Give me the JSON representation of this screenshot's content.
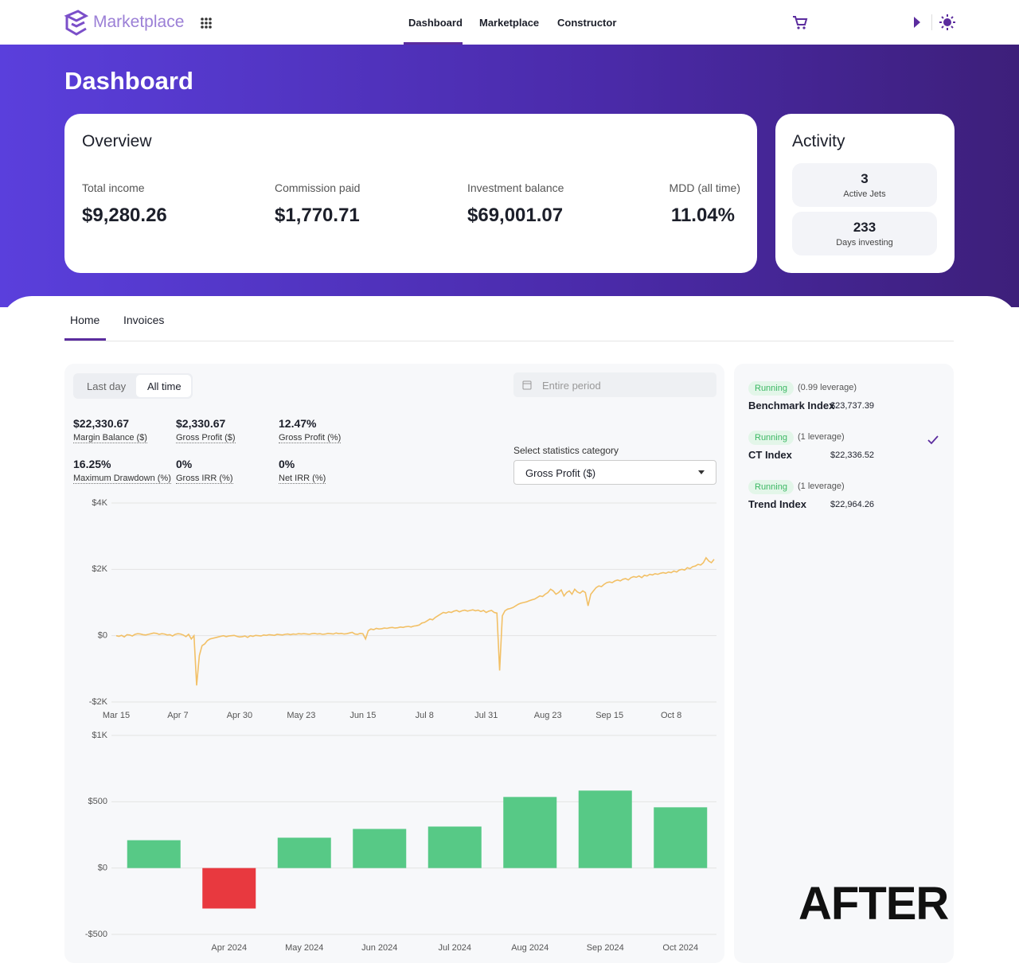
{
  "nav": {
    "brand": "Marketplace",
    "links": [
      "Dashboard",
      "Marketplace",
      "Constructor"
    ]
  },
  "page_title": "Dashboard",
  "overview": {
    "title": "Overview",
    "stats": [
      {
        "label": "Total income",
        "value": "$9,280.26"
      },
      {
        "label": "Commission paid",
        "value": "$1,770.71"
      },
      {
        "label": "Investment balance",
        "value": "$69,001.07"
      },
      {
        "label": "MDD (all time)",
        "value": "11.04%"
      }
    ]
  },
  "activity": {
    "title": "Activity",
    "items": [
      {
        "value": "3",
        "label": "Active Jets"
      },
      {
        "value": "233",
        "label": "Days investing"
      }
    ]
  },
  "tabs": [
    "Home",
    "Invoices"
  ],
  "period_toggle": [
    "Last day",
    "All time"
  ],
  "date_placeholder": "Entire period",
  "metrics": [
    {
      "value": "$22,330.67",
      "label": "Margin Balance ($)"
    },
    {
      "value": "$2,330.67",
      "label": "Gross Profit ($)"
    },
    {
      "value": "12.47%",
      "label": "Gross Profit (%)"
    },
    {
      "value": "16.25%",
      "label": "Maximum Drawdown (%)"
    },
    {
      "value": "0%",
      "label": "Gross IRR (%)"
    },
    {
      "value": "0%",
      "label": "Net IRR (%)"
    }
  ],
  "select_label": "Select statistics category",
  "select_value": "Gross Profit ($)",
  "indexes": [
    {
      "status": "Running",
      "leverage": "(0.99 leverage)",
      "name": "Benchmark Index",
      "value": "$23,737.39",
      "selected": false
    },
    {
      "status": "Running",
      "leverage": "(1 leverage)",
      "name": "CT Index",
      "value": "$22,336.52",
      "selected": true
    },
    {
      "status": "Running",
      "leverage": "(1 leverage)",
      "name": "Trend Index",
      "value": "$22,964.26",
      "selected": false
    }
  ],
  "watermark": "AFTER",
  "chart_data": [
    {
      "type": "line",
      "color": "#f2c066",
      "grid": true,
      "categories": [
        "Mar 15",
        null,
        null,
        null,
        null,
        null,
        null,
        null,
        null,
        null,
        null,
        null,
        null,
        null,
        null,
        null,
        null,
        null,
        null,
        null,
        null,
        null,
        null,
        "Apr 7",
        null,
        null,
        null,
        null,
        null,
        null,
        null,
        null,
        null,
        null,
        null,
        null,
        null,
        null,
        null,
        null,
        null,
        null,
        null,
        null,
        null,
        null,
        "Apr 30",
        null,
        null,
        null,
        null,
        null,
        null,
        null,
        null,
        null,
        null,
        null,
        null,
        null,
        null,
        null,
        null,
        null,
        null,
        null,
        null,
        null,
        null,
        "May 23",
        null,
        null,
        null,
        null,
        null,
        null,
        null,
        null,
        null,
        null,
        null,
        null,
        null,
        null,
        null,
        null,
        null,
        null,
        null,
        null,
        null,
        null,
        "Jun 15",
        null,
        null,
        null,
        null,
        null,
        null,
        null,
        null,
        null,
        null,
        null,
        null,
        null,
        null,
        null,
        null,
        null,
        null,
        null,
        null,
        null,
        null,
        "Jul 8",
        null,
        null,
        null,
        null,
        null,
        null,
        null,
        null,
        null,
        null,
        null,
        null,
        null,
        null,
        null,
        null,
        null,
        null,
        null,
        null,
        null,
        null,
        "Jul 31",
        null,
        null,
        null,
        null,
        null,
        null,
        null,
        null,
        null,
        null,
        null,
        null,
        null,
        null,
        null,
        null,
        null,
        null,
        null,
        null,
        null,
        null,
        "Aug 23",
        null,
        null,
        null,
        null,
        null,
        null,
        null,
        null,
        null,
        null,
        null,
        null,
        null,
        null,
        null,
        null,
        null,
        null,
        null,
        null,
        null,
        null,
        "Sep 15",
        null,
        null,
        null,
        null,
        null,
        null,
        null,
        null,
        null,
        null,
        null,
        null,
        null,
        null,
        null,
        null,
        null,
        null,
        null,
        null,
        null,
        null,
        "Oct 8",
        null,
        null,
        null,
        null,
        null,
        null,
        null,
        null,
        null,
        null,
        null,
        null,
        null,
        null,
        null,
        null
      ],
      "values": [
        0,
        -20,
        10,
        -40,
        30,
        20,
        -10,
        40,
        60,
        50,
        30,
        20,
        40,
        60,
        80,
        70,
        40,
        60,
        50,
        20,
        30,
        -10,
        40,
        60,
        50,
        20,
        -30,
        40,
        -100,
        0,
        -1500,
        -600,
        -300,
        -250,
        -150,
        -100,
        -80,
        -60,
        -40,
        -20,
        0,
        -30,
        -10,
        0,
        10,
        -20,
        -40,
        -30,
        -10,
        -50,
        0,
        -20,
        10,
        0,
        -10,
        20,
        10,
        30,
        20,
        10,
        40,
        30,
        20,
        40,
        50,
        30,
        50,
        40,
        60,
        50,
        60,
        50,
        40,
        60,
        70,
        50,
        60,
        40,
        50,
        70,
        60,
        50,
        80,
        60,
        70,
        50,
        60,
        80,
        100,
        50,
        40,
        70,
        60,
        -100,
        150,
        200,
        180,
        220,
        200,
        210,
        230,
        220,
        240,
        250,
        230,
        240,
        260,
        250,
        270,
        280,
        260,
        290,
        300,
        320,
        380,
        400,
        450,
        500,
        480,
        550,
        600,
        650,
        700,
        680,
        720,
        700,
        740,
        760,
        720,
        750,
        770,
        740,
        760,
        780,
        750,
        770,
        730,
        760,
        700,
        740,
        760,
        700,
        680,
        -1050,
        600,
        750,
        800,
        820,
        850,
        900,
        950,
        980,
        1000,
        1020,
        1050,
        1080,
        1100,
        1150,
        1200,
        1180,
        1250,
        1300,
        1400,
        1350,
        1250,
        1300,
        1380,
        1200,
        1300,
        1350,
        1250,
        1400,
        1320,
        1280,
        1350,
        1300,
        900,
        1250,
        1350,
        1450,
        1500,
        1480,
        1550,
        1600,
        1620,
        1600,
        1650,
        1680,
        1650,
        1700,
        1720,
        1680,
        1750,
        1780,
        1760,
        1800,
        1750,
        1820,
        1800,
        1850,
        1830,
        1870,
        1850,
        1880,
        1900,
        1880,
        1920,
        1900,
        1950,
        1920,
        1980,
        2000,
        1980,
        2050,
        2020,
        2080,
        2100,
        2150,
        2130,
        2200,
        2350,
        2250,
        2200,
        2300
      ],
      "ylim": [
        -2000,
        4000
      ],
      "yticks": [
        {
          "value": -2000,
          "label": "-$2K"
        },
        {
          "value": 0,
          "label": "$0"
        },
        {
          "value": 2000,
          "label": "$2K"
        },
        {
          "value": 4000,
          "label": "$4K"
        }
      ]
    },
    {
      "type": "bar",
      "grid": true,
      "positive_color": "#57c986",
      "negative_color": "#e8393f",
      "categories": [
        null,
        "Apr 2024",
        "May 2024",
        "Jun 2024",
        "Jul 2024",
        "Aug 2024",
        "Sep 2024",
        "Oct 2024"
      ],
      "values": [
        210,
        -305,
        229,
        295,
        313,
        536,
        584,
        458
      ],
      "ylim": [
        -500,
        1000
      ],
      "yticks": [
        {
          "value": -500,
          "label": "-$500"
        },
        {
          "value": 0,
          "label": "$0"
        },
        {
          "value": 500,
          "label": "$500"
        },
        {
          "value": 1000,
          "label": "$1K"
        }
      ]
    }
  ]
}
